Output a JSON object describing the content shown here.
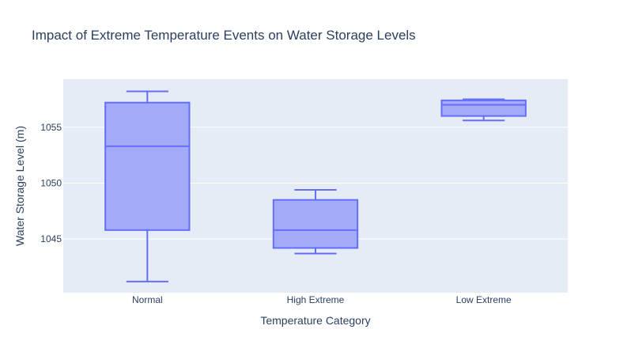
{
  "chart_data": {
    "type": "box",
    "title": "Impact of Extreme Temperature Events on Water Storage Levels",
    "xlabel": "Temperature Category",
    "ylabel": "Water Storage Level (m)",
    "categories": [
      "Normal",
      "High Extreme",
      "Low Extreme"
    ],
    "ylim": [
      1040.2,
      1059.3
    ],
    "yticks": [
      1045,
      1050,
      1055
    ],
    "boxes": [
      {
        "category": "Normal",
        "min": 1041.2,
        "q1": 1045.8,
        "median": 1053.3,
        "q3": 1057.2,
        "max": 1058.2
      },
      {
        "category": "High Extreme",
        "min": 1043.7,
        "q1": 1044.2,
        "median": 1045.8,
        "q3": 1048.5,
        "max": 1049.4
      },
      {
        "category": "Low Extreme",
        "min": 1055.6,
        "q1": 1056.0,
        "median": 1057.0,
        "q3": 1057.4,
        "max": 1057.5
      }
    ],
    "grid": true,
    "legend": "none",
    "colors": {
      "plot_bg": "#e5ecf6",
      "box_fill": "#a3aaf7",
      "box_line": "#636efa",
      "grid": "#ffffff",
      "text": "#2a3f5f"
    }
  }
}
